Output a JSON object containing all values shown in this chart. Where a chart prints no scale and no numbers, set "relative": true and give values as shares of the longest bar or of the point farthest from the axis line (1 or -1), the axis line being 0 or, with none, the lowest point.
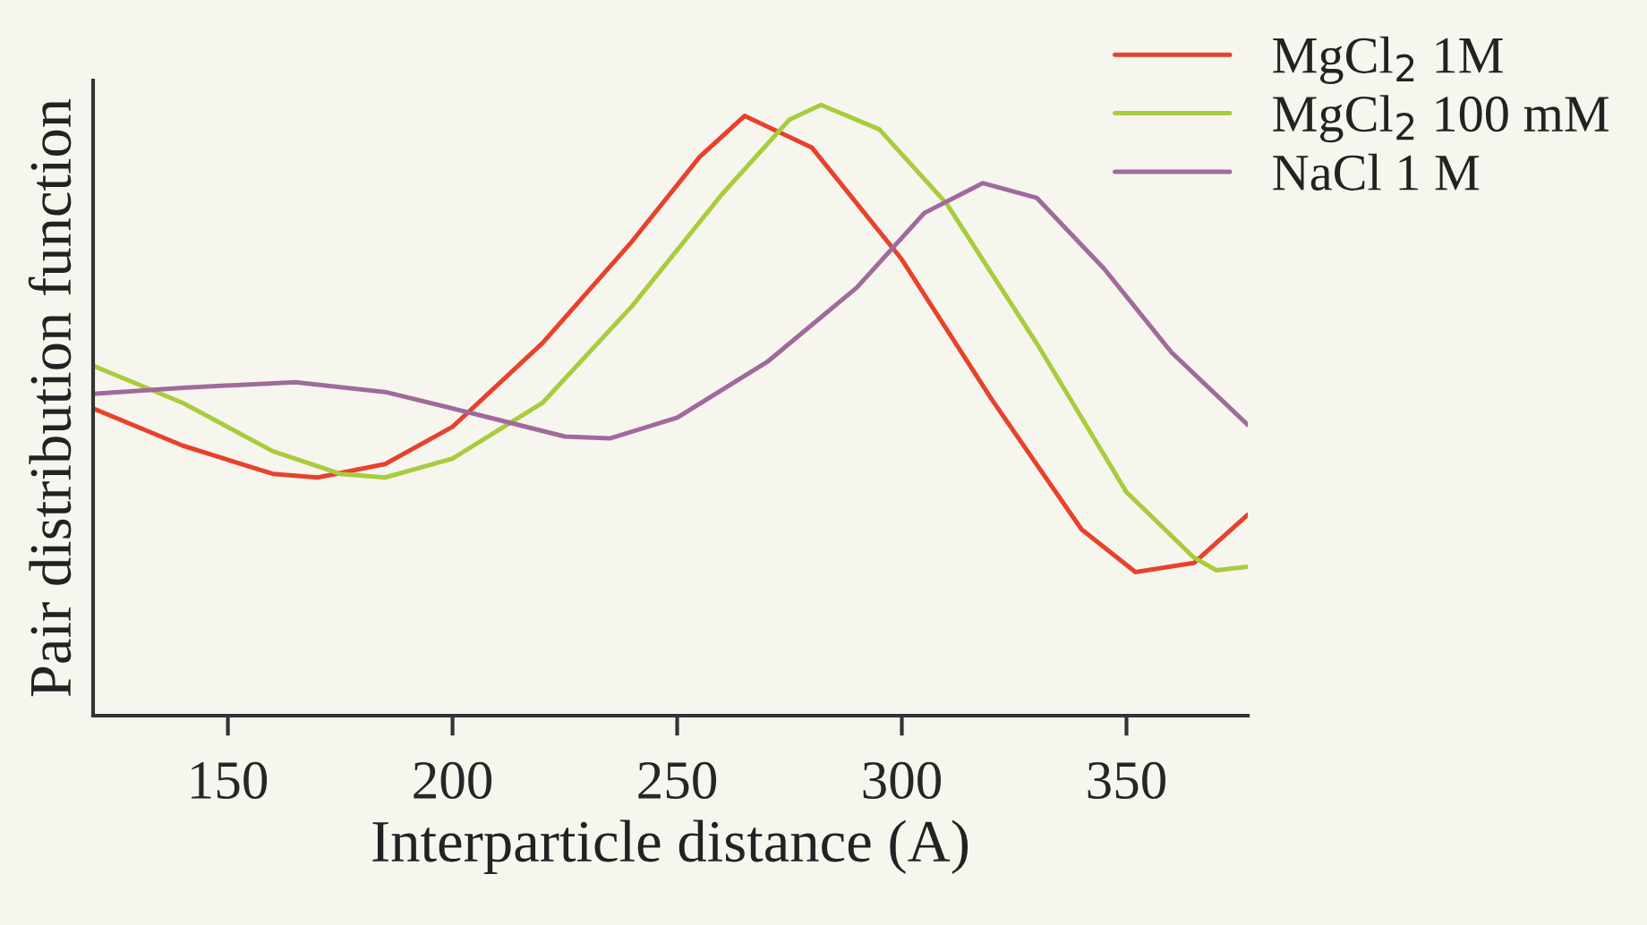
{
  "chart_data": {
    "type": "line",
    "xlabel": "Interparticle distance (A)",
    "ylabel": "Pair distribution function",
    "relative": true,
    "xlim": [
      120,
      377
    ],
    "xticks": [
      150,
      200,
      250,
      300,
      350
    ],
    "grid": false,
    "legend": "top right",
    "marker": "none",
    "line_style": "solid",
    "series": [
      {
        "name": "MgCl$_{2}$ 1M",
        "color": "#e8412c",
        "x": [
          120,
          140,
          160,
          170,
          185,
          200,
          220,
          240,
          255,
          265,
          280,
          300,
          320,
          340,
          352,
          365,
          377
        ],
        "values": [
          0.503,
          0.442,
          0.396,
          0.39,
          0.412,
          0.473,
          0.61,
          0.777,
          0.915,
          0.982,
          0.93,
          0.747,
          0.518,
          0.305,
          0.235,
          0.25,
          0.329
        ]
      },
      {
        "name": "MgCl$_{2}$ 100 mM",
        "color": "#a8cc3c",
        "x": [
          120,
          140,
          160,
          175,
          185,
          200,
          220,
          240,
          260,
          275,
          282,
          295,
          310,
          330,
          350,
          365,
          370,
          377
        ],
        "values": [
          0.573,
          0.512,
          0.433,
          0.396,
          0.39,
          0.421,
          0.512,
          0.671,
          0.854,
          0.976,
          1.0,
          0.96,
          0.838,
          0.61,
          0.366,
          0.259,
          0.238,
          0.244
        ]
      },
      {
        "name": "NaCl 1 M",
        "color": "#a06a9c",
        "x": [
          120,
          140,
          165,
          185,
          205,
          225,
          235,
          250,
          270,
          290,
          305,
          318,
          330,
          345,
          360,
          377
        ],
        "values": [
          0.527,
          0.537,
          0.546,
          0.53,
          0.494,
          0.457,
          0.454,
          0.488,
          0.579,
          0.701,
          0.823,
          0.872,
          0.848,
          0.732,
          0.595,
          0.476
        ]
      }
    ]
  }
}
